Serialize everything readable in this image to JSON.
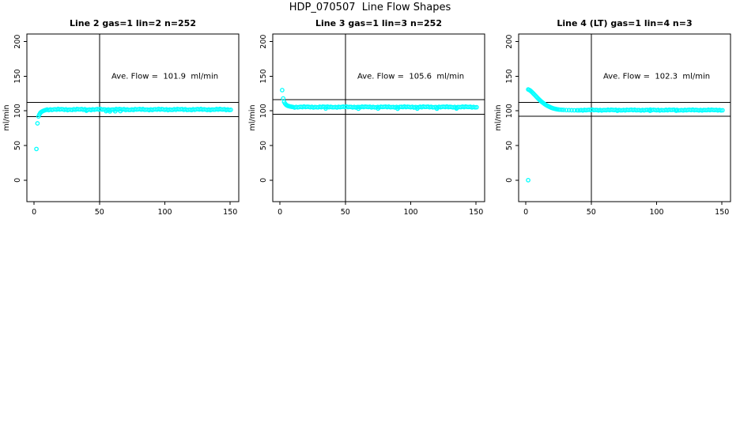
{
  "figure": {
    "title": "HDP_070507  Line Flow Shapes",
    "background_color": "#FFFFFF",
    "axis_color": "#000000",
    "text_color": "#000000"
  },
  "chart_data": {
    "type": "scatter",
    "title": "HDP_070507  Line Flow Shapes",
    "xlabel": "",
    "ylabel": "ml/min",
    "marker": "open-circle",
    "marker_color": "#00FFFF",
    "grid": false,
    "legend": "none",
    "xlim": [
      -5.5,
      156.5
    ],
    "ylim": [
      -31,
      211
    ],
    "x_ticks": [
      0,
      50,
      100,
      150
    ],
    "y_ticks": [
      0,
      50,
      100,
      150,
      200
    ],
    "annotation_position": {
      "x": 100,
      "y": 150
    },
    "panels": [
      {
        "title": "Line 2 gas=1 lin=2 n=252",
        "annotation": "Ave. Flow =  101.9  ml/min",
        "ave_flow_ml_min": 101.9,
        "n": 252,
        "vline_x": 50,
        "hlines": [
          112.1,
          91.7
        ],
        "points": [
          [
            1.8,
            45
          ],
          [
            2.6,
            82
          ],
          [
            3.4,
            92
          ],
          [
            4.0,
            94.5
          ],
          [
            4.6,
            96.5
          ],
          [
            5.2,
            98
          ],
          [
            6.0,
            99
          ],
          [
            6.8,
            99.8
          ],
          [
            7.6,
            100.5
          ],
          [
            8.4,
            101
          ],
          [
            9.2,
            101.4
          ],
          [
            40,
            100.3
          ],
          [
            55,
            99.6
          ],
          [
            58,
            99.2
          ],
          [
            62,
            99.4
          ],
          [
            66,
            99.7
          ]
        ],
        "plateau_band": {
          "x_from": 10,
          "x_to": 151,
          "x_step": 1.2,
          "level": 102.0,
          "jitter": 1.1
        }
      },
      {
        "title": "Line 3 gas=1 lin=3 n=252",
        "annotation": "Ave. Flow =  105.6  ml/min",
        "ave_flow_ml_min": 105.6,
        "n": 252,
        "vline_x": 50,
        "hlines": [
          116.2,
          95.0
        ],
        "points": [
          [
            1.7,
            130
          ],
          [
            2.5,
            118
          ],
          [
            3.2,
            113
          ],
          [
            3.9,
            110.5
          ],
          [
            4.6,
            109
          ],
          [
            5.3,
            108
          ],
          [
            6.0,
            107.3
          ],
          [
            6.8,
            106.8
          ],
          [
            7.6,
            106.4
          ],
          [
            8.4,
            106.1
          ],
          [
            9.2,
            105.9
          ],
          [
            35,
            103.5
          ],
          [
            60,
            103.2
          ],
          [
            75,
            103.4
          ],
          [
            90,
            103.1
          ],
          [
            105,
            103.3
          ],
          [
            120,
            103.2
          ],
          [
            135,
            103.4
          ]
        ],
        "plateau_band": {
          "x_from": 10,
          "x_to": 151,
          "x_step": 1.2,
          "level": 105.6,
          "jitter": 0.9
        }
      },
      {
        "title": "Line 4 (LT) gas=1 lin=4 n=3",
        "annotation": "Ave. Flow =  102.3  ml/min",
        "ave_flow_ml_min": 102.3,
        "n": 3,
        "vline_x": 50,
        "hlines": [
          112.5,
          92.1
        ],
        "points": [
          [
            1.8,
            0
          ],
          [
            1.8,
            131
          ],
          [
            2.6,
            130.3
          ],
          [
            3.4,
            129.3
          ],
          [
            4.2,
            128
          ],
          [
            5.0,
            126.5
          ],
          [
            5.8,
            125
          ],
          [
            6.6,
            123.4
          ],
          [
            7.4,
            121.8
          ],
          [
            8.2,
            120.2
          ],
          [
            9.0,
            118.6
          ],
          [
            9.8,
            117.1
          ],
          [
            10.6,
            115.7
          ],
          [
            11.4,
            114.3
          ],
          [
            12.2,
            113
          ],
          [
            13.0,
            111.8
          ],
          [
            13.8,
            110.7
          ],
          [
            14.6,
            109.6
          ],
          [
            15.4,
            108.6
          ],
          [
            16.2,
            107.7
          ],
          [
            17.0,
            106.9
          ],
          [
            17.8,
            106.1
          ],
          [
            18.6,
            105.4
          ],
          [
            19.4,
            104.7
          ],
          [
            20.2,
            104.1
          ],
          [
            21.0,
            103.6
          ],
          [
            22.0,
            103.1
          ],
          [
            23.0,
            102.7
          ],
          [
            24.0,
            102.3
          ],
          [
            25.0,
            102.0
          ],
          [
            26.0,
            101.8
          ],
          [
            27.5,
            101.6
          ],
          [
            29.0,
            101.4
          ],
          [
            31.0,
            101.2
          ],
          [
            33.0,
            101.1
          ],
          [
            35.0,
            101.0
          ],
          [
            37.0,
            100.9
          ],
          [
            39.0,
            100.9
          ],
          [
            70,
            100.2
          ],
          [
            95,
            100.1
          ],
          [
            115,
            100.3
          ]
        ],
        "plateau_band": {
          "x_from": 40,
          "x_to": 151,
          "x_step": 1.2,
          "level": 101.2,
          "jitter": 0.8
        }
      }
    ]
  }
}
